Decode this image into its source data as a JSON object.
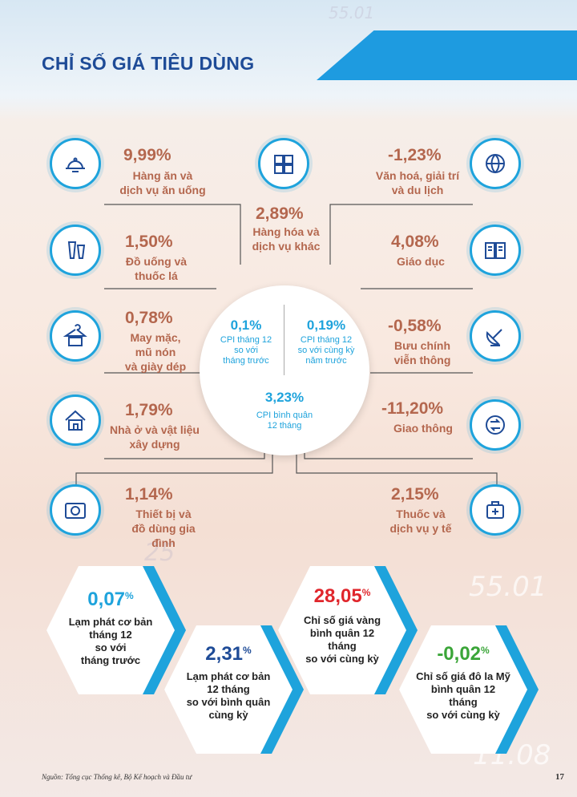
{
  "header": {
    "title": "CHỈ SỐ GIÁ TIÊU DÙNG"
  },
  "decor_numbers": [
    "55.01",
    "25",
    "55.01",
    "11.08"
  ],
  "categories": [
    {
      "value": "9,99%",
      "label1": "Hàng ăn và",
      "label2": "dịch vụ ăn uống",
      "icon": "food-tray-icon"
    },
    {
      "value": "1,50%",
      "label1": "Đồ uống và",
      "label2": "thuốc lá",
      "icon": "drinks-icon"
    },
    {
      "value": "0,78%",
      "label1": "May mặc,",
      "label2": "mũ nón",
      "label3": "và giày dép",
      "icon": "clothing-icon"
    },
    {
      "value": "1,79%",
      "label1": "Nhà ở và vật liệu",
      "label2": "xây dựng",
      "icon": "house-icon"
    },
    {
      "value": "1,14%",
      "label1": "Thiết bị và",
      "label2": "đồ dùng gia đình",
      "icon": "appliance-icon"
    },
    {
      "value": "2,89%",
      "label1": "Hàng hóa và",
      "label2": "dịch vụ khác",
      "icon": "goods-icon"
    },
    {
      "value": "-1,23%",
      "label1": "Văn hoá, giải trí",
      "label2": "và du lịch",
      "icon": "globe-icon"
    },
    {
      "value": "4,08%",
      "label1": "Giáo dục",
      "icon": "book-icon"
    },
    {
      "value": "-0,58%",
      "label1": "Bưu chính",
      "label2": "viễn thông",
      "icon": "satellite-icon"
    },
    {
      "value": "-11,20%",
      "label1": "Giao thông",
      "icon": "traffic-icon"
    },
    {
      "value": "2,15%",
      "label1": "Thuốc và",
      "label2": "dịch vụ y tế",
      "icon": "medical-icon"
    }
  ],
  "center": {
    "a_value": "0,1%",
    "a_l1": "CPI tháng 12",
    "a_l2": "so với",
    "a_l3": "tháng trước",
    "b_value": "0,19%",
    "b_l1": "CPI tháng 12",
    "b_l2": "so với cùng kỳ",
    "b_l3": "năm trước",
    "c_value": "3,23%",
    "c_l1": "CPI bình quân",
    "c_l2": "12 tháng"
  },
  "hexagons": [
    {
      "value": "0,07",
      "sup": "%",
      "color": "#1ea3dc",
      "l1": "Lạm phát cơ bản",
      "l2": "tháng 12",
      "l3": "so với",
      "l4": "tháng trước"
    },
    {
      "value": "2,31",
      "sup": "%",
      "color": "#1e4b97",
      "l1": "Lạm phát cơ bản",
      "l2": "12 tháng",
      "l3": "so với bình quân",
      "l4": "cùng kỳ"
    },
    {
      "value": "28,05",
      "sup": "%",
      "color": "#e0262c",
      "l1": "Chỉ số giá vàng",
      "l2": "bình quân 12",
      "l3": "tháng",
      "l4": "so với cùng kỳ"
    },
    {
      "value": "-0,02",
      "sup": "%",
      "color": "#3aa538",
      "l1": "Chỉ số giá đô la Mỹ",
      "l2": "bình quân 12",
      "l3": "tháng",
      "l4": "so với cùng kỳ"
    }
  ],
  "footer": {
    "source": "Nguồn: Tổng cục Thống kê, Bộ Kế hoạch và Đầu tư",
    "page": "17"
  }
}
